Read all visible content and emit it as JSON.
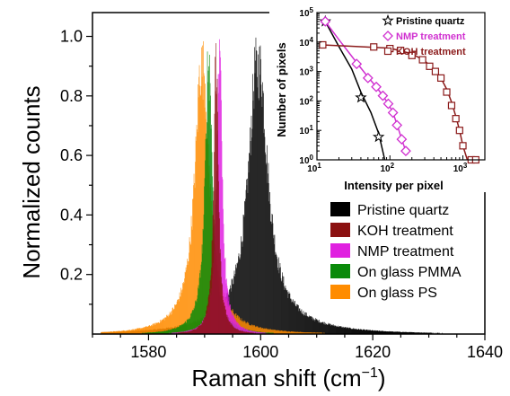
{
  "chart_data": [
    {
      "type": "histogram",
      "xlabel": "Raman shift (cm",
      "xlabel_sup": "−1",
      "xlabel_close": ")",
      "ylabel": "Normalized counts",
      "xlim": [
        1570,
        1640
      ],
      "ylim": [
        0,
        1.08
      ],
      "xticks": [
        1580,
        1600,
        1620,
        1640
      ],
      "yticks": [
        0.2,
        0.4,
        0.6,
        0.8,
        1.0
      ],
      "ytick_labels": [
        "0.2",
        "0.4",
        "0.6",
        "0.8",
        "1.0"
      ],
      "legend_position": "lower-right",
      "series": [
        {
          "name": "Pristine quartz",
          "color": "#000000",
          "center": 1599.5,
          "hwhm": 1.9,
          "tail": 7.0
        },
        {
          "name": "KOH treatment",
          "color": "#8b1010",
          "center": 1592.0,
          "hwhm": 0.45,
          "tail": 1.2
        },
        {
          "name": "NMP treatment",
          "color": "#e020e0",
          "center": 1592.6,
          "hwhm": 0.55,
          "tail": 1.6
        },
        {
          "name": "On glass PMMA",
          "color": "#0a8a0a",
          "center": 1590.7,
          "hwhm": 0.7,
          "tail": 2.5
        },
        {
          "name": "On glass PS",
          "color": "#ff8c00",
          "center": 1589.5,
          "hwhm": 1.4,
          "tail": 4.0
        }
      ]
    },
    {
      "type": "line",
      "xlabel": "Intensity per pixel",
      "ylabel": "Number of pixels",
      "xscale": "log",
      "yscale": "log",
      "xlim": [
        10,
        2000
      ],
      "ylim": [
        1,
        100000
      ],
      "xtick_labels": [
        {
          "base": "10",
          "exp": "1"
        },
        {
          "base": "10",
          "exp": "2"
        },
        {
          "base": "10",
          "exp": "3"
        }
      ],
      "ytick_labels": [
        {
          "base": "10",
          "exp": "0"
        },
        {
          "base": "10",
          "exp": "1"
        },
        {
          "base": "10",
          "exp": "2"
        },
        {
          "base": "10",
          "exp": "3"
        },
        {
          "base": "10",
          "exp": "4"
        },
        {
          "base": "10",
          "exp": "5"
        }
      ],
      "legend_position": "top-right",
      "series": [
        {
          "name": "Pristine quartz",
          "color": "#000000",
          "marker": "star",
          "points": [
            [
              13,
              50000
            ],
            [
              40,
              130
            ],
            [
              70,
              6
            ]
          ],
          "curve": [
            [
              13,
              50000
            ],
            [
              20,
              7000
            ],
            [
              30,
              1200
            ],
            [
              40,
              200
            ],
            [
              55,
              40
            ],
            [
              70,
              8
            ],
            [
              85,
              1
            ]
          ]
        },
        {
          "name": "NMP treatment",
          "color": "#d030d0",
          "marker": "diamond",
          "points": [
            [
              13,
              50000
            ],
            [
              35,
              1800
            ],
            [
              50,
              600
            ],
            [
              65,
              300
            ],
            [
              80,
              150
            ],
            [
              95,
              80
            ],
            [
              110,
              40
            ],
            [
              125,
              15
            ],
            [
              145,
              5
            ],
            [
              165,
              2
            ]
          ],
          "curve": [
            [
              13,
              50000
            ],
            [
              20,
              12000
            ],
            [
              35,
              2000
            ],
            [
              50,
              650
            ],
            [
              65,
              300
            ],
            [
              80,
              150
            ],
            [
              95,
              80
            ],
            [
              110,
              40
            ],
            [
              125,
              16
            ],
            [
              145,
              5
            ],
            [
              165,
              2
            ],
            [
              175,
              1.5
            ]
          ]
        },
        {
          "name": "KOH treatment",
          "color": "#8b1a1a",
          "marker": "square",
          "points": [
            [
              12,
              8000
            ],
            [
              60,
              6800
            ],
            [
              100,
              6000
            ],
            [
              140,
              5200
            ],
            [
              200,
              3500
            ],
            [
              280,
              2500
            ],
            [
              350,
              1500
            ],
            [
              420,
              1000
            ],
            [
              500,
              600
            ],
            [
              600,
              200
            ],
            [
              700,
              70
            ],
            [
              800,
              25
            ],
            [
              900,
              10
            ],
            [
              1000,
              3
            ],
            [
              1300,
              1
            ],
            [
              1500,
              1
            ]
          ],
          "curve": [
            [
              12,
              8000
            ],
            [
              100,
              6200
            ],
            [
              200,
              4000
            ],
            [
              300,
              2300
            ],
            [
              400,
              1200
            ],
            [
              500,
              600
            ],
            [
              600,
              250
            ],
            [
              700,
              90
            ],
            [
              800,
              30
            ],
            [
              900,
              10
            ],
            [
              1000,
              3
            ],
            [
              1150,
              1
            ]
          ]
        }
      ]
    }
  ]
}
